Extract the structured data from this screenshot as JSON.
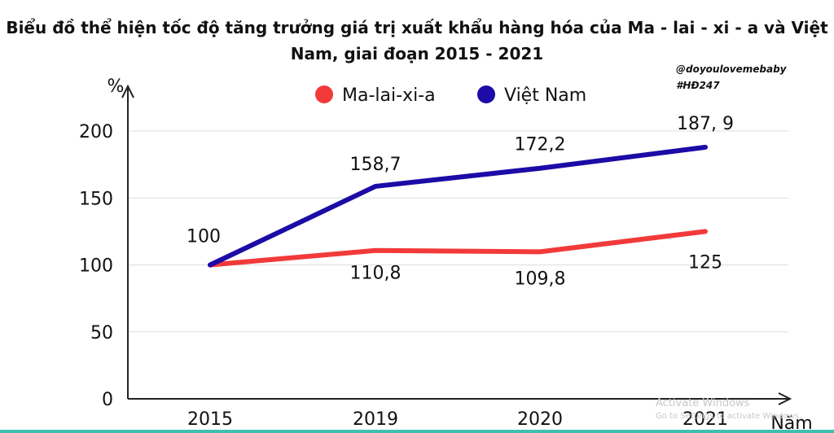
{
  "chart_data": {
    "type": "line",
    "title": "Biểu đồ thể hiện tốc độ tăng trưởng giá trị xuất khẩu hàng hóa của Ma - lai - xi - a và Việt Nam, giai đoạn 2015 - 2021",
    "ylabel": "%",
    "xlabel": "Năm",
    "categories": [
      "2015",
      "2019",
      "2020",
      "2021"
    ],
    "ylim": [
      0,
      200
    ],
    "yticks": [
      "0",
      "50",
      "100",
      "150",
      "200"
    ],
    "grid": true,
    "legend_position": "top",
    "series": [
      {
        "name": "Ma-lai-xi-a",
        "color": "#f23a3a",
        "values": [
          100,
          110.8,
          109.8,
          125
        ],
        "labels": [
          "",
          "110,8",
          "109,8",
          "125"
        ]
      },
      {
        "name": "Việt Nam",
        "color": "#1c0ba6",
        "values": [
          100,
          158.7,
          172.2,
          187.9
        ],
        "labels": [
          "100",
          "158,7",
          "172,2",
          "187, 9"
        ]
      }
    ]
  },
  "watermark": {
    "line1": "@doyoulovemebaby",
    "line2": "#HĐ247"
  },
  "os_overlay": {
    "line1": "Activate Windows",
    "line2": "Go to Settings to activate Windows."
  }
}
